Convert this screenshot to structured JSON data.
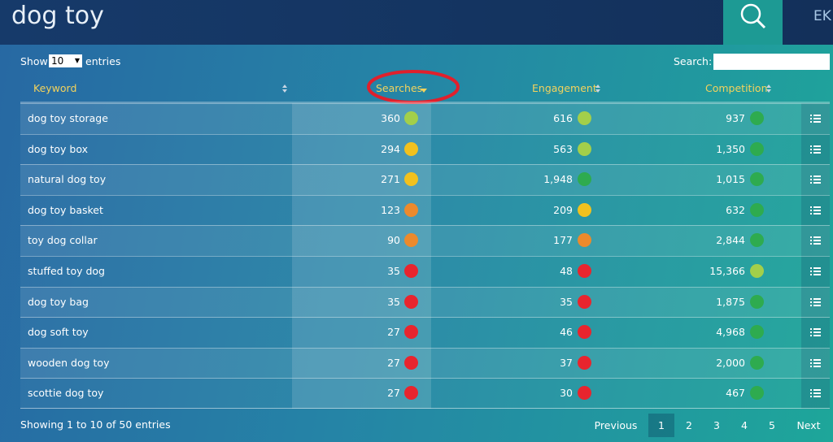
{
  "header": {
    "title": "dog toy",
    "user": "EK"
  },
  "controls": {
    "show_label": "Show",
    "page_size": "10",
    "entries_label": "entries",
    "search_label": "Search:"
  },
  "table": {
    "columns": [
      "Keyword",
      "Searches",
      "Engagement",
      "Competition"
    ],
    "rows": [
      [
        "dog toy storage",
        "360",
        "616",
        "937"
      ],
      [
        "dog toy box",
        "294",
        "563",
        "1,350"
      ],
      [
        "natural dog toy",
        "271",
        "1,948",
        "1,015"
      ],
      [
        "dog toy basket",
        "123",
        "209",
        "632"
      ],
      [
        "toy dog collar",
        "90",
        "177",
        "2,844"
      ],
      [
        "stuffed toy dog",
        "35",
        "48",
        "15,366"
      ],
      [
        "dog toy bag",
        "35",
        "35",
        "1,875"
      ],
      [
        "dog soft toy",
        "27",
        "46",
        "4,968"
      ],
      [
        "wooden dog toy",
        "27",
        "37",
        "2,000"
      ],
      [
        "scottie dog toy",
        "27",
        "30",
        "467"
      ]
    ],
    "dot_colors": [
      [
        "#a3cf4a",
        "#a3cf4a",
        "#2eab4f"
      ],
      [
        "#f2c11e",
        "#a3cf4a",
        "#2eab4f"
      ],
      [
        "#f2c11e",
        "#2eab4f",
        "#2eab4f"
      ],
      [
        "#ec8a2c",
        "#f2c11e",
        "#2eab4f"
      ],
      [
        "#ec8a2c",
        "#ec8a2c",
        "#2eab4f"
      ],
      [
        "#e8252e",
        "#e8252e",
        "#a3cf4a"
      ],
      [
        "#e8252e",
        "#e8252e",
        "#2eab4f"
      ],
      [
        "#e8252e",
        "#e8252e",
        "#2eab4f"
      ],
      [
        "#e8252e",
        "#e8252e",
        "#2eab4f"
      ],
      [
        "#e8252e",
        "#e8252e",
        "#2eab4f"
      ]
    ]
  },
  "footer": {
    "info": "Showing 1 to 10 of 50 entries",
    "pagination": [
      "Previous",
      "1",
      "2",
      "3",
      "4",
      "5",
      "Next"
    ]
  }
}
